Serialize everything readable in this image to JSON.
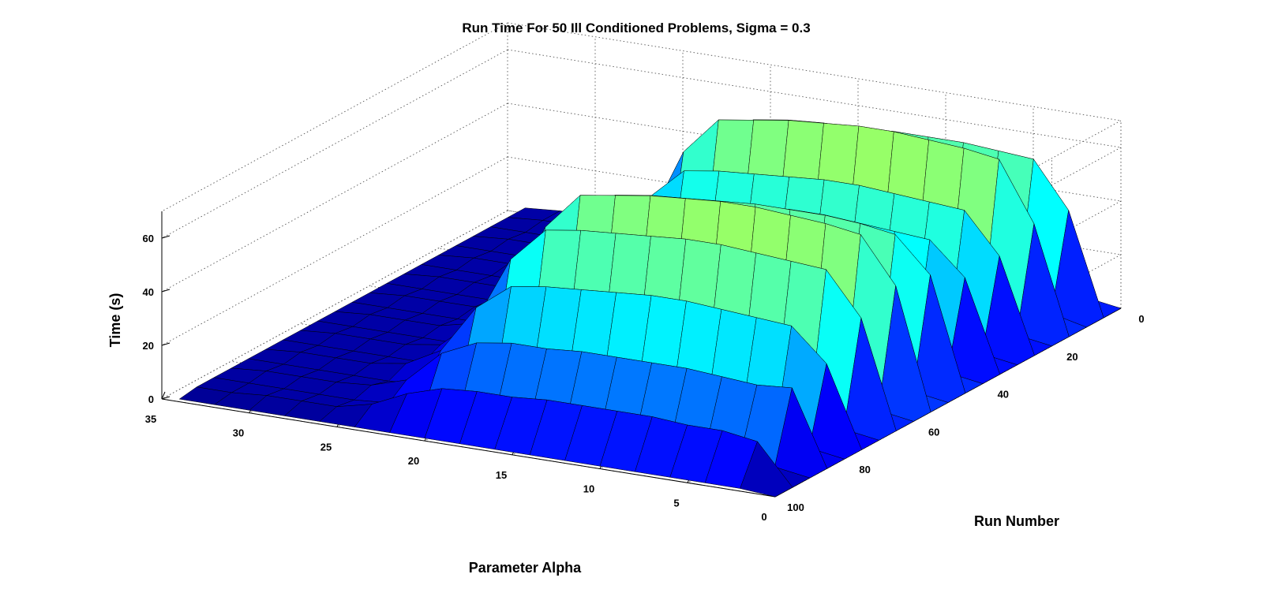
{
  "chart_data": {
    "type": "surface",
    "title": "Run Time For 50 Ill Conditioned Problems, Sigma = 0.3",
    "xlabel": "Parameter Alpha",
    "ylabel": "Run Number",
    "zlabel": "Time (s)",
    "xlim": [
      0,
      35
    ],
    "ylim": [
      0,
      100
    ],
    "zlim": [
      0,
      70
    ],
    "x_ticks": [
      "0",
      "5",
      "10",
      "15",
      "20",
      "25",
      "30",
      "35"
    ],
    "y_ticks": [
      "0",
      "20",
      "40",
      "60",
      "80",
      "100"
    ],
    "z_ticks": [
      "0",
      "20",
      "40",
      "60"
    ],
    "colormap": "jet",
    "grid": true,
    "alpha_values": [
      0,
      2,
      4,
      6,
      8,
      10,
      12,
      14,
      16,
      18,
      20,
      22,
      24,
      26,
      28,
      30,
      32,
      34
    ],
    "run_numbers": [
      0,
      5,
      10,
      15,
      20,
      25,
      30,
      35,
      40,
      45,
      50,
      55,
      60,
      65,
      70,
      75,
      80,
      85,
      90,
      95,
      100
    ],
    "time_s": [
      [
        0,
        2,
        30,
        30,
        31,
        31,
        31,
        30,
        30,
        29,
        27,
        20,
        8,
        4,
        3,
        3,
        3,
        2
      ],
      [
        0,
        38,
        55,
        56,
        57,
        57,
        57,
        56,
        56,
        55,
        53,
        40,
        16,
        5,
        3,
        3,
        3,
        2
      ],
      [
        0,
        3,
        3,
        3,
        3,
        3,
        3,
        3,
        3,
        3,
        3,
        3,
        3,
        3,
        2,
        2,
        2,
        2
      ],
      [
        0,
        40,
        62,
        64,
        65,
        66,
        66,
        65,
        64,
        62,
        60,
        46,
        18,
        6,
        3,
        3,
        3,
        2
      ],
      [
        0,
        2,
        3,
        3,
        3,
        3,
        3,
        3,
        3,
        3,
        3,
        3,
        3,
        2,
        2,
        2,
        2,
        2
      ],
      [
        0,
        35,
        50,
        51,
        52,
        53,
        53,
        52,
        51,
        50,
        48,
        36,
        14,
        5,
        3,
        3,
        3,
        2
      ],
      [
        0,
        2,
        3,
        3,
        3,
        3,
        3,
        3,
        3,
        3,
        3,
        3,
        3,
        2,
        2,
        2,
        2,
        2
      ],
      [
        0,
        34,
        46,
        47,
        48,
        49,
        49,
        48,
        47,
        46,
        44,
        33,
        12,
        5,
        3,
        3,
        3,
        2
      ],
      [
        0,
        2,
        3,
        3,
        3,
        3,
        3,
        3,
        3,
        3,
        3,
        3,
        3,
        2,
        2,
        2,
        2,
        2
      ],
      [
        0,
        42,
        55,
        57,
        58,
        58,
        58,
        57,
        56,
        55,
        53,
        40,
        15,
        5,
        3,
        3,
        3,
        2
      ],
      [
        0,
        2,
        3,
        3,
        3,
        3,
        3,
        3,
        3,
        3,
        3,
        3,
        3,
        2,
        2,
        2,
        2,
        2
      ],
      [
        0,
        45,
        62,
        64,
        65,
        66,
        66,
        65,
        64,
        62,
        60,
        46,
        18,
        6,
        3,
        3,
        3,
        2
      ],
      [
        0,
        2,
        3,
        3,
        3,
        3,
        3,
        3,
        3,
        3,
        3,
        3,
        3,
        2,
        2,
        2,
        2,
        2
      ],
      [
        0,
        40,
        56,
        57,
        58,
        59,
        59,
        58,
        57,
        56,
        54,
        41,
        16,
        5,
        3,
        3,
        3,
        2
      ],
      [
        0,
        2,
        3,
        3,
        3,
        3,
        3,
        3,
        3,
        3,
        3,
        3,
        3,
        2,
        2,
        2,
        2,
        2
      ],
      [
        0,
        30,
        42,
        43,
        44,
        45,
        45,
        44,
        43,
        42,
        40,
        30,
        12,
        5,
        3,
        3,
        3,
        2
      ],
      [
        0,
        2,
        3,
        3,
        3,
        3,
        3,
        3,
        3,
        3,
        3,
        3,
        3,
        2,
        2,
        2,
        2,
        2
      ],
      [
        0,
        28,
        27,
        28,
        29,
        29,
        29,
        29,
        28,
        28,
        26,
        20,
        8,
        4,
        3,
        3,
        3,
        2
      ],
      [
        0,
        2,
        3,
        3,
        3,
        3,
        3,
        3,
        3,
        3,
        3,
        3,
        3,
        2,
        2,
        2,
        2,
        2
      ],
      [
        0,
        15,
        17,
        17,
        18,
        18,
        18,
        18,
        17,
        17,
        16,
        12,
        6,
        3,
        3,
        3,
        2,
        2
      ],
      [
        0,
        1,
        1,
        1,
        1,
        1,
        1,
        1,
        1,
        1,
        1,
        1,
        1,
        1,
        1,
        1,
        1,
        1
      ]
    ]
  }
}
